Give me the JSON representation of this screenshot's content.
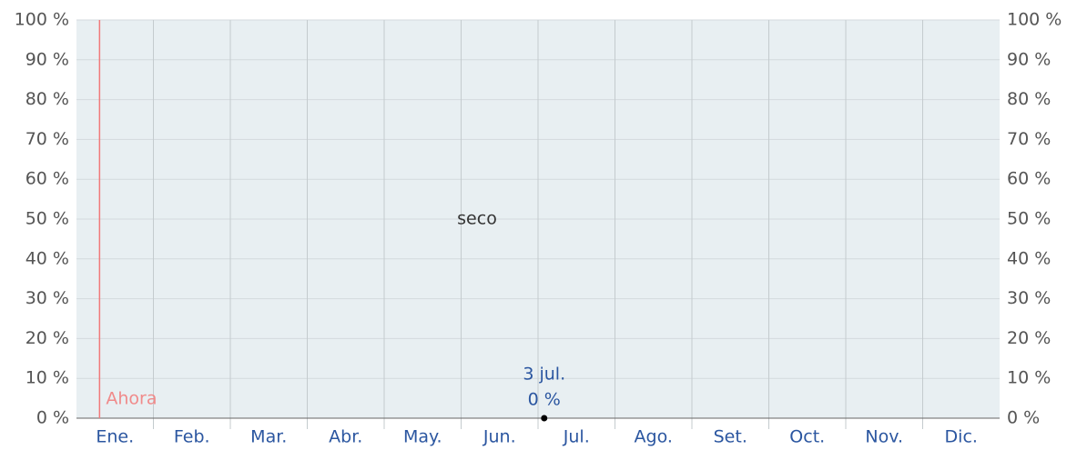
{
  "chart_data": {
    "type": "line",
    "categories": [
      "Ene.",
      "Feb.",
      "Mar.",
      "Abr.",
      "May.",
      "Jun.",
      "Jul.",
      "Ago.",
      "Set.",
      "Oct.",
      "Nov.",
      "Dic."
    ],
    "ylim": [
      0,
      100
    ],
    "yticks": [
      {
        "value": 0,
        "label": "0 %"
      },
      {
        "value": 10,
        "label": "10 %"
      },
      {
        "value": 20,
        "label": "20 %"
      },
      {
        "value": 30,
        "label": "30 %"
      },
      {
        "value": 40,
        "label": "40 %"
      },
      {
        "value": 50,
        "label": "50 %"
      },
      {
        "value": 60,
        "label": "60 %"
      },
      {
        "value": 70,
        "label": "70 %"
      },
      {
        "value": 80,
        "label": "80 %"
      },
      {
        "value": 90,
        "label": "90 %"
      },
      {
        "value": 100,
        "label": "100 %"
      }
    ],
    "grid": true,
    "region_label": "seco",
    "now_label": "Ahora",
    "point": {
      "label": "3 jul.",
      "value": 0,
      "value_label": "0 %"
    }
  }
}
